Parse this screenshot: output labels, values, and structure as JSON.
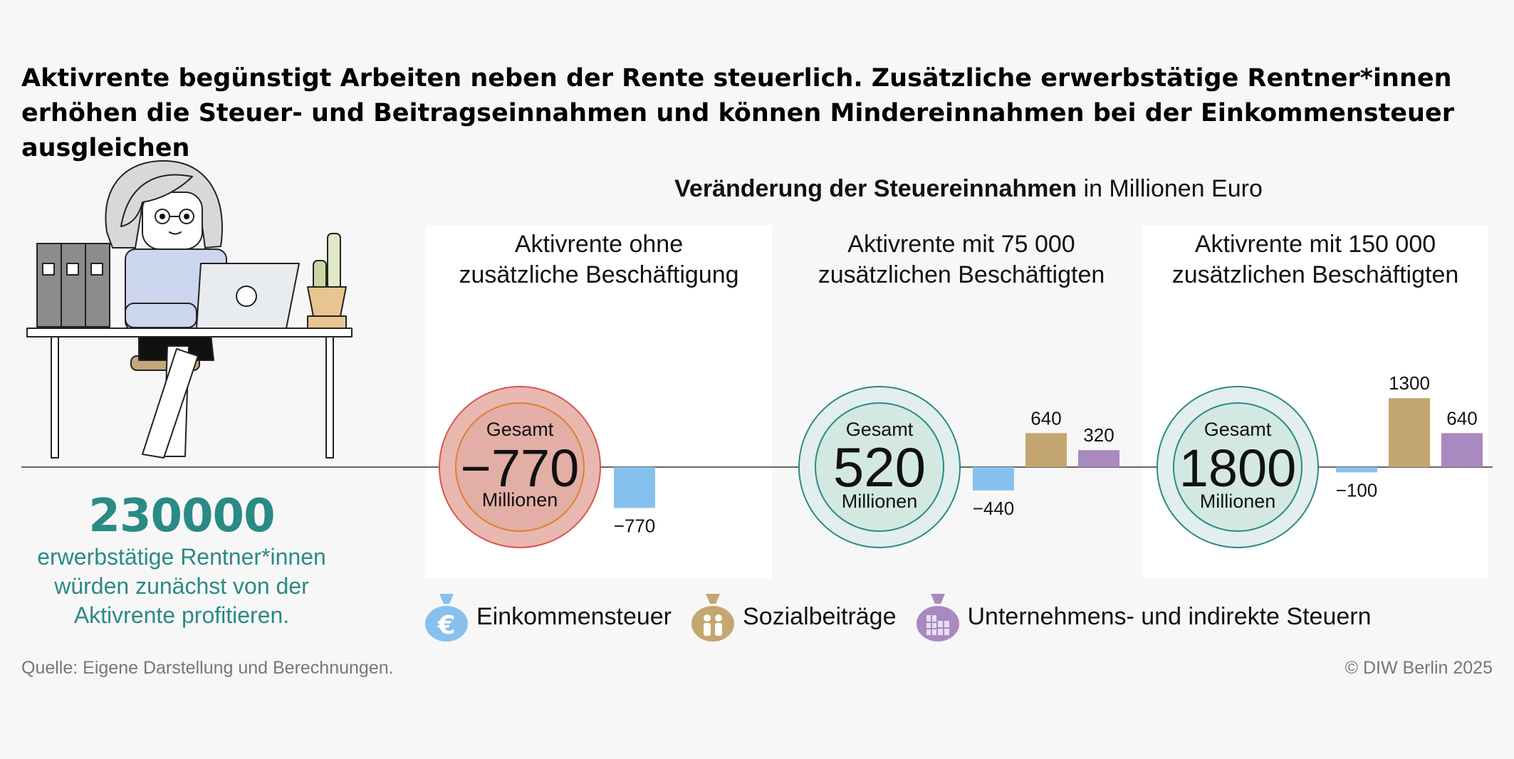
{
  "headline": "Aktivrente begünstigt Arbeiten neben der Rente steuerlich. Zusätzliche erwerbstätige Rentner*innen erhöhen die Steuer- und Beitragseinnahmen und können Mindereinnahmen bei der Einkommensteuer ausgleichen",
  "chart_title_bold": "Veränderung der Steuereinnahmen",
  "chart_title_rest": " in Millionen Euro",
  "big_number": "230000",
  "big_number_desc": "erwerbstätige Rentner*innen würden zunächst von der Aktivrente profitieren.",
  "source": "Quelle: Eigene Darstellung und Berechnungen.",
  "copyright": "© DIW Berlin 2025",
  "legend": [
    {
      "label": "Einkommensteuer",
      "color": "#86c1ed",
      "icon": "euro-money-bag-icon"
    },
    {
      "label": "Sozialbeiträge",
      "color": "#c4a671",
      "icon": "family-money-bag-icon"
    },
    {
      "label": "Unternehmens- und indirekte Steuern",
      "color": "#a889c0",
      "icon": "building-money-bag-icon"
    }
  ],
  "colors": {
    "teal": "#2a8a86",
    "red_circle": "#e3aea6",
    "green_circle": "#d4e8e2",
    "background": "#f7f7f7"
  },
  "chart_data": {
    "type": "bar",
    "series_names": [
      "Einkommensteuer",
      "Sozialbeiträge",
      "Unternehmens- und indirekte Steuern"
    ],
    "panels": [
      {
        "title": [
          "Aktivrente ohne",
          "zusätzliche Beschäftigung"
        ],
        "total_label": "Gesamt",
        "total_value": "−770",
        "total_unit": "Millionen",
        "total_tone": "negative",
        "bars": [
          {
            "series": "Einkommensteuer",
            "value": -770,
            "label": "−770"
          }
        ]
      },
      {
        "title": [
          "Aktivrente mit 75 000",
          "zusätzlichen Beschäftigten"
        ],
        "total_label": "Gesamt",
        "total_value": "520",
        "total_unit": "Millionen",
        "total_tone": "positive",
        "bars": [
          {
            "series": "Einkommensteuer",
            "value": -440,
            "label": "−440"
          },
          {
            "series": "Sozialbeiträge",
            "value": 640,
            "label": "640"
          },
          {
            "series": "Unternehmens- und indirekte Steuern",
            "value": 320,
            "label": "320"
          }
        ]
      },
      {
        "title": [
          "Aktivrente mit 150 000",
          "zusätzlichen Beschäftigten"
        ],
        "total_label": "Gesamt",
        "total_value": "1800",
        "total_unit": "Millionen",
        "total_tone": "positive",
        "bars": [
          {
            "series": "Einkommensteuer",
            "value": -100,
            "label": "−100"
          },
          {
            "series": "Sozialbeiträge",
            "value": 1300,
            "label": "1300"
          },
          {
            "series": "Unternehmens- und indirekte Steuern",
            "value": 640,
            "label": "640"
          }
        ]
      }
    ]
  }
}
